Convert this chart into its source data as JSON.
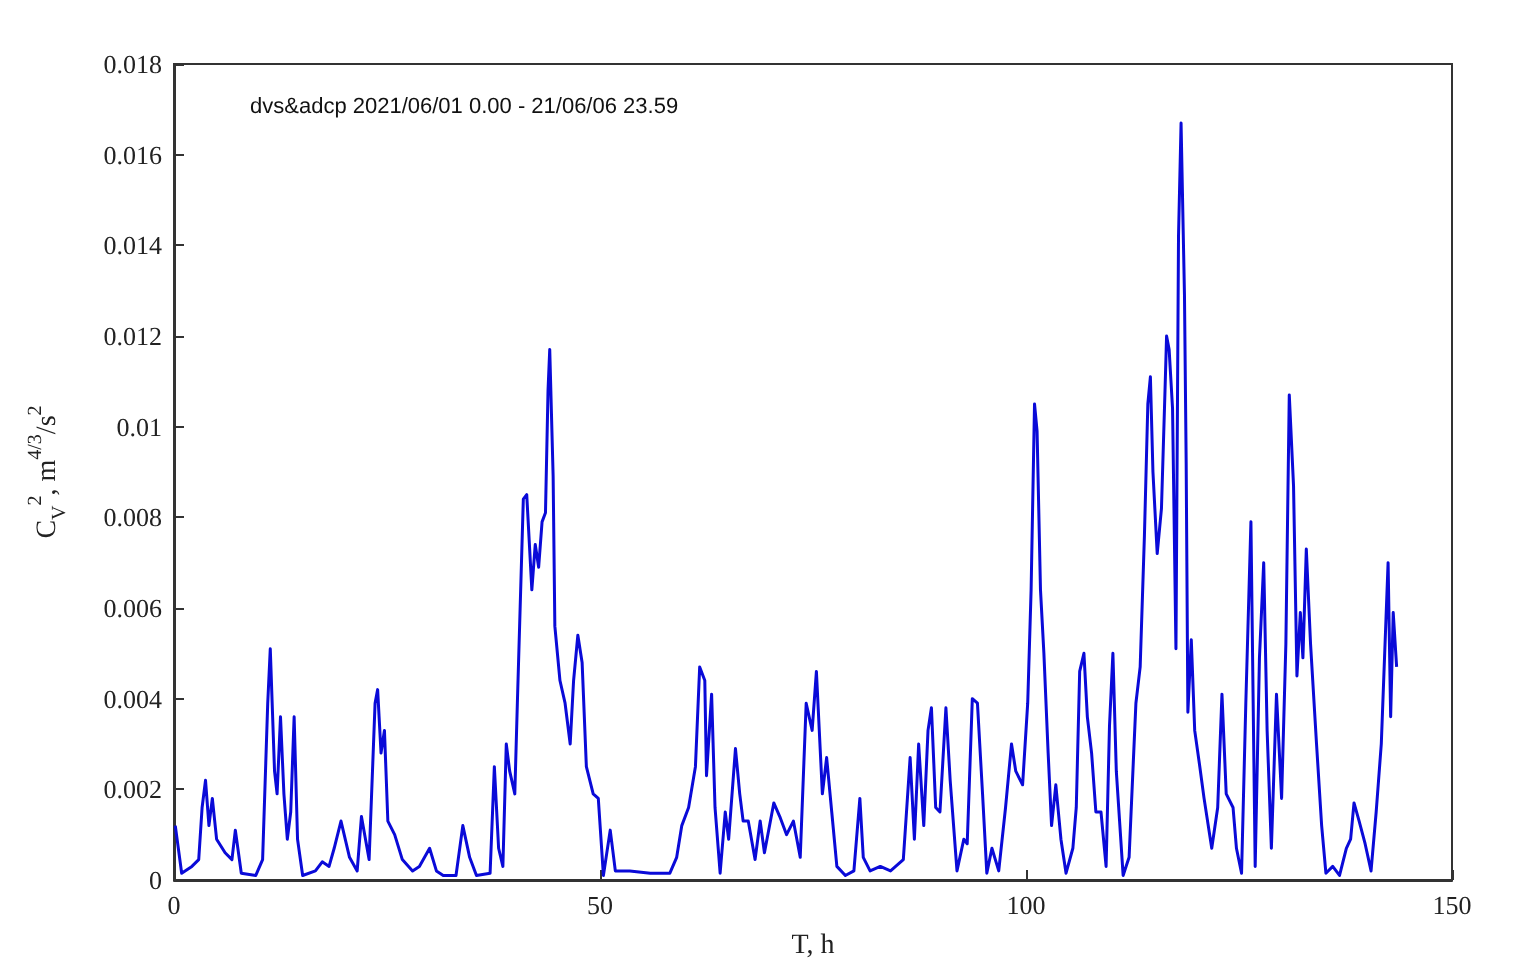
{
  "chart_data": {
    "type": "line",
    "xlabel": "T, h",
    "ylabel": "C$_{V}$$^{2}$, m$^{4/3}$/s$^{2}$",
    "annotations": [
      "dvs&adcp 2021/06/01 0.00 - 21/06/06 23.59"
    ],
    "xlim": [
      0,
      150
    ],
    "xticks": [
      0,
      50,
      100,
      150
    ],
    "ylim": [
      0,
      0.018
    ],
    "yticks": [
      0,
      0.002,
      0.004,
      0.006,
      0.008,
      0.01,
      0.012,
      0.014,
      0.016,
      0.018
    ],
    "grid": false,
    "marker": "none",
    "line_style": "solid",
    "series": [
      {
        "color": "#0a0ad8",
        "x": [
          0.15,
          0.9,
          2.1,
          2.9,
          3.3,
          3.7,
          4.1,
          4.5,
          5.0,
          6.0,
          6.8,
          7.2,
          7.9,
          9.6,
          10.4,
          11.0,
          11.3,
          11.8,
          12.1,
          12.5,
          12.9,
          13.3,
          13.7,
          14.1,
          14.5,
          15.1,
          16.6,
          17.4,
          18.2,
          18.8,
          19.6,
          20.6,
          21.5,
          22.0,
          22.9,
          23.6,
          23.9,
          24.3,
          24.7,
          25.1,
          25.9,
          26.8,
          28.0,
          28.8,
          30.0,
          30.8,
          31.6,
          33.1,
          33.9,
          34.7,
          35.5,
          37.1,
          37.6,
          38.1,
          38.6,
          39.0,
          39.4,
          40.0,
          40.3,
          41.0,
          41.4,
          42.0,
          42.4,
          42.8,
          43.2,
          43.6,
          43.9,
          44.1,
          44.5,
          44.7,
          45.3,
          45.9,
          46.5,
          46.9,
          47.4,
          47.9,
          48.4,
          49.2,
          49.8,
          50.4,
          51.2,
          51.8,
          53.5,
          55.9,
          58.2,
          59.0,
          59.6,
          60.4,
          61.2,
          61.7,
          62.3,
          62.5,
          63.1,
          63.5,
          64.1,
          64.7,
          65.1,
          65.9,
          66.4,
          66.8,
          67.4,
          68.2,
          68.8,
          69.3,
          70.4,
          71.1,
          71.9,
          72.7,
          73.5,
          74.2,
          74.9,
          75.4,
          76.1,
          76.6,
          77.2,
          77.8,
          78.8,
          79.8,
          80.5,
          80.9,
          81.7,
          82.9,
          84.1,
          85.6,
          86.4,
          86.9,
          87.4,
          88.0,
          88.5,
          88.9,
          89.4,
          89.9,
          90.6,
          91.1,
          91.9,
          92.7,
          93.1,
          93.7,
          94.3,
          94.9,
          95.4,
          96.0,
          96.8,
          97.6,
          98.3,
          98.8,
          99.6,
          100.2,
          100.6,
          101.0,
          101.3,
          101.7,
          102.1,
          102.6,
          103.0,
          103.5,
          104.1,
          104.7,
          105.5,
          105.9,
          106.3,
          106.8,
          107.2,
          107.7,
          108.2,
          108.8,
          109.4,
          109.8,
          110.2,
          110.6,
          111.4,
          112.1,
          112.9,
          113.4,
          113.9,
          114.3,
          114.6,
          114.9,
          115.4,
          115.9,
          116.3,
          116.5,
          116.8,
          117.2,
          117.6,
          117.9,
          118.2,
          118.6,
          118.8,
          119.0,
          119.4,
          119.8,
          120.4,
          120.9,
          121.8,
          122.5,
          123.0,
          123.5,
          124.3,
          124.7,
          125.3,
          125.8,
          126.4,
          126.9,
          127.4,
          127.9,
          128.3,
          128.8,
          129.4,
          130.0,
          130.5,
          130.9,
          131.4,
          131.8,
          132.2,
          132.5,
          132.9,
          133.4,
          134.1,
          134.7,
          135.2,
          136.0,
          136.8,
          137.6,
          138.1,
          138.5,
          139.1,
          139.8,
          140.5,
          141.1,
          141.7,
          142.1,
          142.5,
          142.8,
          143.1,
          143.5
        ],
        "values": [
          0.0012,
          0.00015,
          0.0003,
          0.00045,
          0.0016,
          0.0022,
          0.0012,
          0.0018,
          0.0009,
          0.0006,
          0.00045,
          0.0011,
          0.00015,
          0.0001,
          0.00045,
          0.0039,
          0.0051,
          0.0024,
          0.0019,
          0.0036,
          0.0019,
          0.0009,
          0.0015,
          0.0036,
          0.0009,
          0.0001,
          0.0002,
          0.0004,
          0.0003,
          0.0007,
          0.0013,
          0.0005,
          0.0002,
          0.0014,
          0.00045,
          0.0039,
          0.0042,
          0.0028,
          0.0033,
          0.0013,
          0.001,
          0.00045,
          0.0002,
          0.0003,
          0.0007,
          0.0002,
          0.0001,
          0.0001,
          0.0012,
          0.0005,
          0.0001,
          0.00015,
          0.0025,
          0.0007,
          0.0003,
          0.003,
          0.0024,
          0.0019,
          0.0039,
          0.0084,
          0.0085,
          0.0064,
          0.0074,
          0.0069,
          0.0079,
          0.0081,
          0.0108,
          0.0117,
          0.0089,
          0.0056,
          0.0044,
          0.0039,
          0.003,
          0.0044,
          0.0054,
          0.0048,
          0.0025,
          0.0019,
          0.0018,
          0.0001,
          0.0011,
          0.0002,
          0.0002,
          0.00015,
          0.00015,
          0.0005,
          0.0012,
          0.0016,
          0.0025,
          0.0047,
          0.0044,
          0.0023,
          0.0041,
          0.0016,
          0.00015,
          0.0015,
          0.0009,
          0.0029,
          0.0019,
          0.0013,
          0.0013,
          0.00045,
          0.0013,
          0.0006,
          0.0017,
          0.0014,
          0.001,
          0.0013,
          0.0005,
          0.0039,
          0.0033,
          0.0046,
          0.0019,
          0.0027,
          0.0015,
          0.0003,
          0.0001,
          0.0002,
          0.0018,
          0.0005,
          0.0002,
          0.0003,
          0.0002,
          0.00045,
          0.0027,
          0.0009,
          0.003,
          0.0012,
          0.0033,
          0.0038,
          0.0016,
          0.0015,
          0.0038,
          0.0022,
          0.0002,
          0.0009,
          0.0008,
          0.004,
          0.0039,
          0.0019,
          0.00015,
          0.0007,
          0.0002,
          0.0016,
          0.003,
          0.0024,
          0.0021,
          0.0039,
          0.0064,
          0.0105,
          0.0099,
          0.0064,
          0.005,
          0.0028,
          0.0012,
          0.0021,
          0.0009,
          0.00015,
          0.0007,
          0.0016,
          0.0046,
          0.005,
          0.0036,
          0.0028,
          0.0015,
          0.0015,
          0.0003,
          0.0034,
          0.005,
          0.0024,
          0.0001,
          0.0005,
          0.0039,
          0.0047,
          0.0076,
          0.0105,
          0.0111,
          0.009,
          0.0072,
          0.0082,
          0.0107,
          0.012,
          0.0117,
          0.0104,
          0.0051,
          0.0142,
          0.0167,
          0.0129,
          0.0092,
          0.0037,
          0.0053,
          0.0033,
          0.0025,
          0.0018,
          0.0007,
          0.0016,
          0.0041,
          0.0019,
          0.0016,
          0.0007,
          0.00015,
          0.0039,
          0.0079,
          0.0003,
          0.0049,
          0.007,
          0.0033,
          0.0007,
          0.0041,
          0.0018,
          0.0052,
          0.0107,
          0.0087,
          0.0045,
          0.0059,
          0.0049,
          0.0073,
          0.0052,
          0.003,
          0.0012,
          0.00015,
          0.0003,
          0.0001,
          0.0007,
          0.0009,
          0.0017,
          0.0013,
          0.0008,
          0.0002,
          0.0015,
          0.003,
          0.005,
          0.007,
          0.0036,
          0.0059,
          0.0047
        ]
      }
    ]
  }
}
